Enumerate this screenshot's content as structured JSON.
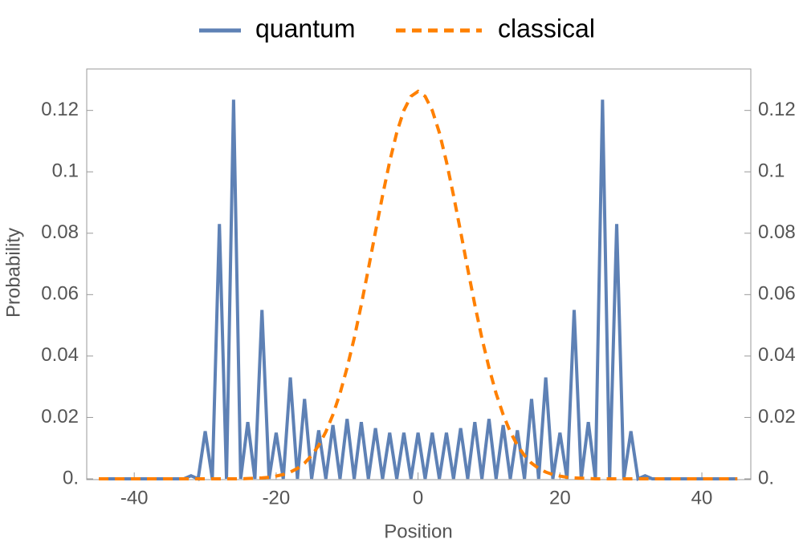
{
  "chart_data": {
    "type": "line",
    "x_label": "Position",
    "y_label": "Probability",
    "x": [
      -45,
      -44,
      -43,
      -42,
      -41,
      -40,
      -39,
      -38,
      -37,
      -36,
      -35,
      -34,
      -33,
      -32,
      -31,
      -30,
      -29,
      -28,
      -27,
      -26,
      -25,
      -24,
      -23,
      -22,
      -21,
      -20,
      -19,
      -18,
      -17,
      -16,
      -15,
      -14,
      -13,
      -12,
      -11,
      -10,
      -9,
      -8,
      -7,
      -6,
      -5,
      -4,
      -3,
      -2,
      -1,
      0,
      1,
      2,
      3,
      4,
      5,
      6,
      7,
      8,
      9,
      10,
      11,
      12,
      13,
      14,
      15,
      16,
      17,
      18,
      19,
      20,
      21,
      22,
      23,
      24,
      25,
      26,
      27,
      28,
      29,
      30,
      31,
      32,
      33,
      34,
      35,
      36,
      37,
      38,
      39,
      40,
      41,
      42,
      43,
      44,
      45
    ],
    "series": [
      {
        "name": "quantum",
        "color": "#5e81b5",
        "dashed": false,
        "values": [
          0,
          0,
          0,
          0,
          0,
          0,
          0,
          0,
          0,
          0,
          0,
          0,
          0,
          0.001,
          0,
          0.0155,
          0,
          0.083,
          0,
          0.1235,
          0,
          0.0185,
          0,
          0.055,
          0,
          0.015,
          0,
          0.033,
          0,
          0.026,
          0,
          0.0158,
          0,
          0.0175,
          0,
          0.0195,
          0,
          0.0185,
          0,
          0.0165,
          0,
          0.015,
          0,
          0.015,
          0,
          0.015,
          0,
          0.015,
          0,
          0.015,
          0,
          0.0165,
          0,
          0.0185,
          0,
          0.0195,
          0,
          0.0175,
          0,
          0.0158,
          0,
          0.026,
          0,
          0.033,
          0,
          0.015,
          0,
          0.055,
          0,
          0.0185,
          0,
          0.1235,
          0,
          0.083,
          0,
          0.0155,
          0,
          0.001,
          0,
          0,
          0,
          0,
          0,
          0,
          0,
          0,
          0,
          0,
          0,
          0,
          0
        ]
      },
      {
        "name": "classical",
        "color": "#ff8000",
        "dashed": true,
        "values": [
          0,
          0,
          0,
          0,
          0,
          0,
          0,
          0,
          0,
          0,
          0,
          0,
          0,
          0,
          0,
          0,
          0,
          0,
          0,
          0,
          0,
          0.0001,
          0.0002,
          0.0003,
          0.0005,
          0.0009,
          0.0014,
          0.0022,
          0.0034,
          0.0051,
          0.0076,
          0.0109,
          0.0153,
          0.0209,
          0.0278,
          0.0362,
          0.0458,
          0.0567,
          0.0684,
          0.0805,
          0.0923,
          0.1033,
          0.1128,
          0.12,
          0.1246,
          0.1262,
          0.1246,
          0.12,
          0.1128,
          0.1033,
          0.0923,
          0.0805,
          0.0684,
          0.0567,
          0.0458,
          0.0362,
          0.0278,
          0.0209,
          0.0153,
          0.0109,
          0.0076,
          0.0051,
          0.0034,
          0.0022,
          0.0014,
          0.0009,
          0.0005,
          0.0003,
          0.0002,
          0.0001,
          0,
          0,
          0,
          0,
          0,
          0,
          0,
          0,
          0,
          0,
          0,
          0,
          0,
          0,
          0,
          0,
          0,
          0,
          0,
          0,
          0
        ]
      }
    ],
    "xlim": [
      -46.7,
      46.9
    ],
    "xticks": [
      -40,
      -20,
      0,
      20,
      40
    ],
    "ylim": [
      0,
      0.1335
    ],
    "yticks": [
      {
        "value": 0,
        "label": "0."
      },
      0.02,
      0.04,
      0.06,
      0.08,
      0.1,
      0.12
    ],
    "y2lim": [
      0,
      0.1335
    ],
    "y2ticks": [
      {
        "value": 0,
        "label": "0."
      },
      0.02,
      0.04,
      0.06,
      0.08,
      0.1,
      0.12
    ],
    "legend": "top"
  }
}
